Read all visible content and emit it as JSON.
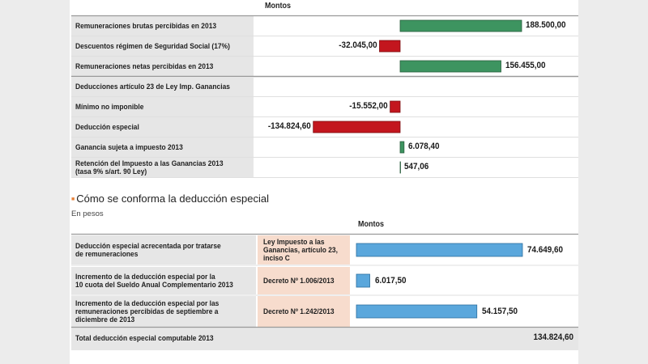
{
  "colors": {
    "positive_bar": "#3d9460",
    "negative_bar": "#c3161e",
    "blue_bar": "#5aa7dc",
    "label_bg": "#e6e6e6",
    "source_bg": "#f7dccd",
    "accent_bullet": "#e8823a"
  },
  "chart_data": [
    {
      "type": "bar",
      "orientation": "horizontal",
      "column_header": "Montos",
      "categories": [
        "Remuneraciones brutas percibidas en 2013",
        "Descuentos régimen de Seguridad Social (17%)",
        "Remuneraciones netas percibidas en 2013",
        "Deducciones artículo 23 de Ley Imp. Ganancias",
        "Mínimo no imponible",
        "Deducción especial",
        "Ganancia sujeta a impuesto 2013",
        "Retención del Impuesto a las Ganancias 2013 (tasa 9% s/art. 90 Ley)"
      ],
      "values": [
        188500.0,
        -32045.0,
        156455.0,
        null,
        -15552.0,
        -134824.6,
        6078.4,
        547.06
      ],
      "value_labels": [
        "188.500,00",
        "-32.045,00",
        "156.455,00",
        "",
        "-15.552,00",
        "-134.824,60",
        "6.078,40",
        "547,06"
      ],
      "bar_colors": [
        "positive",
        "negative",
        "positive",
        null,
        "negative",
        "negative",
        "positive",
        "positive"
      ]
    },
    {
      "type": "bar",
      "orientation": "horizontal",
      "title": "Cómo se conforma la deducción especial",
      "subtitle": "En pesos",
      "column_header": "Montos",
      "categories": [
        "Deducción especial acrecentada por tratarse de remuneraciones",
        "Incremento de la deducción especial por la 10 cuota del Sueldo Anual Complementario 2013",
        "Incremento de la deducción especial por las remuneraciones percibidas de septiembre a diciembre de 2013"
      ],
      "sources": [
        "Ley Impuesto a las Ganancias, artículo 23, inciso C",
        "Decreto Nº 1.006/2013",
        "Decreto Nº 1.242/2013"
      ],
      "values": [
        74649.6,
        6017.5,
        54157.5
      ],
      "value_labels": [
        "74.649,60",
        "6.017,50",
        "54.157,50"
      ],
      "total": {
        "label": "Total deducción especial computable 2013",
        "value": 134824.6,
        "value_label": "134.824,60"
      }
    }
  ],
  "table1": {
    "header": "Montos",
    "rows": [
      {
        "label_lines": [
          "Remuneraciones brutas percibidas en 2013"
        ]
      },
      {
        "label_lines": [
          "Descuentos régimen de Seguridad Social (17%)"
        ]
      },
      {
        "label_lines": [
          "Remuneraciones netas percibidas en 2013"
        ]
      },
      {
        "label_lines": [
          "Deducciones artículo 23 de Ley Imp. Ganancias"
        ]
      },
      {
        "label_lines": [
          "Mínimo no imponible"
        ]
      },
      {
        "label_lines": [
          "Deducción especial"
        ]
      },
      {
        "label_lines": [
          "Ganancia sujeta a impuesto 2013"
        ]
      },
      {
        "label_lines": [
          "Retención del Impuesto a las Ganancias 2013",
          "(tasa 9% s/art. 90 Ley)"
        ]
      }
    ]
  },
  "section2": {
    "bullet": "■",
    "title": "Cómo se conforma la deducción especial",
    "subtitle": "En pesos",
    "header": "Montos",
    "rows": [
      {
        "label_lines": [
          "Deducción especial acrecentada por tratarse",
          "de remuneraciones"
        ],
        "source_lines": [
          "Ley Impuesto a las",
          "Ganancias, artículo 23,",
          "inciso C"
        ]
      },
      {
        "label_lines": [
          "Incremento de la deducción especial por la",
          "10 cuota del Sueldo Anual Complementario 2013"
        ],
        "source_lines": [
          "Decreto Nº 1.006/2013"
        ]
      },
      {
        "label_lines": [
          "Incremento de la deducción especial por las",
          "remuneraciones percibidas de septiembre a",
          "diciembre de 2013"
        ],
        "source_lines": [
          "Decreto Nº 1.242/2013"
        ]
      }
    ],
    "total_label": "Total deducción especial computable 2013"
  }
}
